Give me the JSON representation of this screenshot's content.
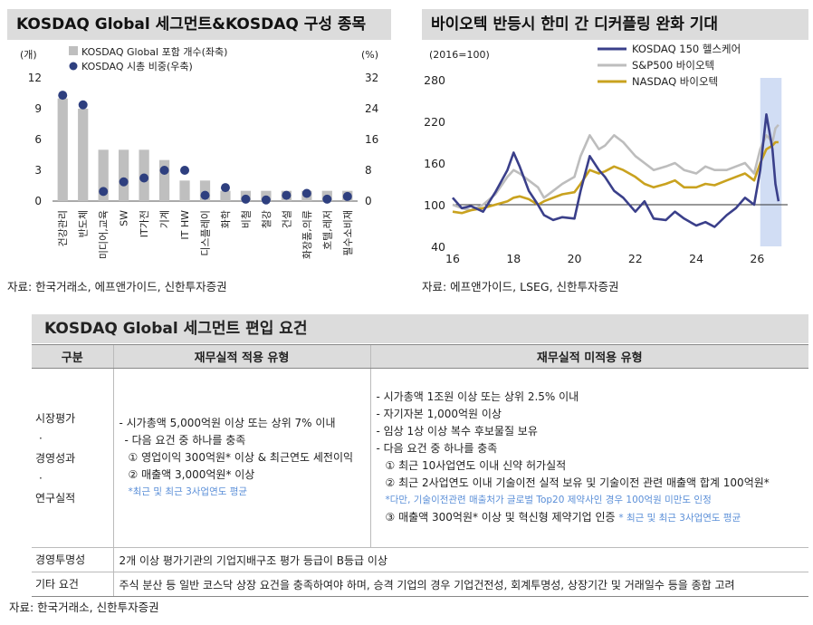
{
  "left_panel": {
    "title": "KOSDAQ Global 세그먼트&KOSDAQ 구성 종목",
    "source": "자료: 한국거래소, 에프앤가이드, 신한투자증권"
  },
  "right_panel": {
    "title": "바이오텍 반등시 한미 간 디커플링 완화 기대",
    "source": "자료: 에프앤가이드, LSEG, 신한투자증권"
  },
  "chart_data": [
    {
      "type": "bar",
      "left_unit": "(개)",
      "right_unit": "(%)",
      "left_ticks": [
        "0",
        "3",
        "6",
        "9",
        "12"
      ],
      "right_ticks": [
        "0",
        "8",
        "16",
        "24",
        "32"
      ],
      "ylim_left": [
        0,
        12
      ],
      "ylim_right": [
        0,
        32
      ],
      "categories": [
        "건강관리",
        "반도체",
        "미디어,교육",
        "SW",
        "IT가전",
        "기계",
        "IT HW",
        "디스플레이",
        "화학",
        "비철",
        "철강",
        "건설",
        "화장품,의류",
        "호텔,레저",
        "필수소비재"
      ],
      "series": [
        {
          "name": "KOSDAQ Global 포함 개수(좌축)",
          "kind": "bar",
          "axis": "left",
          "color": "#bfbfbf",
          "values": [
            10,
            9,
            5,
            5,
            5,
            4,
            2,
            2,
            1,
            1,
            1,
            1,
            1,
            1,
            1
          ]
        },
        {
          "name": "KOSDAQ 시총 비중(우축)",
          "kind": "dot",
          "axis": "right",
          "color": "#2e3f7f",
          "values": [
            27.5,
            25,
            2.5,
            5,
            6,
            8,
            8,
            1.5,
            3.5,
            0.5,
            0.3,
            1.5,
            2,
            0.5,
            1.2
          ]
        }
      ]
    },
    {
      "type": "line",
      "unit_label": "(2016=100)",
      "y_ticks": [
        "40",
        "100",
        "160",
        "220",
        "280"
      ],
      "x_ticks": [
        "16",
        "18",
        "20",
        "22",
        "24",
        "26"
      ],
      "ylim": [
        40,
        280
      ],
      "xlim": [
        16,
        27
      ],
      "shaded_region": [
        26.1,
        26.8
      ],
      "series": [
        {
          "name": "KOSDAQ 150 헬스케어",
          "color": "#3a3f8a",
          "x": [
            16,
            16.3,
            16.6,
            17,
            17.4,
            17.8,
            18,
            18.2,
            18.5,
            18.8,
            19,
            19.3,
            19.6,
            20,
            20.2,
            20.5,
            20.8,
            21,
            21.3,
            21.6,
            22,
            22.3,
            22.6,
            23,
            23.3,
            23.6,
            24,
            24.3,
            24.6,
            25,
            25.3,
            25.6,
            25.9,
            26.1,
            26.3,
            26.5,
            26.6,
            26.7
          ],
          "y": [
            110,
            95,
            98,
            90,
            118,
            150,
            175,
            155,
            120,
            100,
            85,
            78,
            82,
            80,
            120,
            170,
            150,
            140,
            120,
            110,
            90,
            105,
            80,
            78,
            90,
            80,
            70,
            75,
            68,
            85,
            95,
            110,
            100,
            150,
            230,
            180,
            130,
            105
          ]
        },
        {
          "name": "S&P500 바이오텍",
          "color": "#bdbdbd",
          "x": [
            16,
            16.3,
            16.6,
            17,
            17.4,
            17.8,
            18,
            18.2,
            18.5,
            18.8,
            19,
            19.3,
            19.6,
            20,
            20.2,
            20.5,
            20.8,
            21,
            21.3,
            21.6,
            22,
            22.3,
            22.6,
            23,
            23.3,
            23.6,
            24,
            24.3,
            24.6,
            25,
            25.3,
            25.6,
            25.9,
            26.1,
            26.3,
            26.5,
            26.6,
            26.7
          ],
          "y": [
            100,
            95,
            92,
            100,
            115,
            140,
            150,
            145,
            135,
            125,
            110,
            120,
            130,
            140,
            170,
            200,
            180,
            185,
            200,
            190,
            170,
            160,
            150,
            155,
            160,
            150,
            145,
            155,
            150,
            150,
            155,
            160,
            145,
            180,
            200,
            190,
            210,
            215
          ]
        },
        {
          "name": "NASDAQ 바이오텍",
          "color": "#c9a21f",
          "x": [
            16,
            16.3,
            16.6,
            17,
            17.4,
            17.8,
            18,
            18.2,
            18.5,
            18.8,
            19,
            19.3,
            19.6,
            20,
            20.2,
            20.5,
            20.8,
            21,
            21.3,
            21.6,
            22,
            22.3,
            22.6,
            23,
            23.3,
            23.6,
            24,
            24.3,
            24.6,
            25,
            25.3,
            25.6,
            25.9,
            26.1,
            26.3,
            26.5,
            26.6,
            26.7
          ],
          "y": [
            90,
            88,
            92,
            95,
            100,
            105,
            110,
            112,
            108,
            100,
            105,
            110,
            115,
            118,
            130,
            150,
            145,
            148,
            155,
            150,
            140,
            130,
            125,
            130,
            135,
            125,
            125,
            130,
            128,
            135,
            140,
            145,
            135,
            160,
            180,
            185,
            190,
            190
          ]
        }
      ]
    }
  ],
  "table": {
    "title": "KOSDAQ Global 세그먼트 편입 요건",
    "headers": [
      "구분",
      "재무실적 적용 유형",
      "재무실적 미적용 유형"
    ],
    "row1": {
      "label_lines": [
        "시장평가",
        "·",
        "경영성과",
        "·",
        "연구실적"
      ],
      "applied": [
        "- 시가총액 5,000억원 이상 또는 상위 7% 이내",
        "- 다음 요건 중 하나를 충족",
        "① 영업이익 300억원* 이상 & 최근연도 세전이익",
        "② 매출액 3,000억원* 이상"
      ],
      "applied_note": "*최근 및 최근 3사업연도 평균",
      "not_applied": [
        "- 시가총액 1조원 이상 또는 상위 2.5% 이내",
        "- 자기자본 1,000억원 이상",
        "- 임상 1상 이상 복수 후보물질 보유",
        "- 다음 요건 중 하나를 충족",
        "① 최근 10사업연도 이내 신약 허가실적",
        "② 최근 2사업연도 이내 기술이전 실적 보유 및 기술이전 관련 매출액 합계 100억원*"
      ],
      "not_applied_note": "*다만, 기술이전관련 매출처가 글로벌 Top20 제약사인 경우 100억원 미만도 인정",
      "not_applied_last": "③ 매출액 300억원* 이상 및 혁신형 제약기업 인증",
      "not_applied_last_note": "* 최근 및 최근 3사업연도 평균"
    },
    "row2": {
      "label": "경영투명성",
      "text": "2개 이상 평가기관의 기업지배구조 평가 등급이 B등급 이상"
    },
    "row3": {
      "label": "기타 요건",
      "text": "주식 분산 등 일반 코스닥 상장 요건을 충족하여야 하며, 승격 기업의 경우 기업건전성, 회계투명성, 상장기간 및 거래일수 등을 종합 고려"
    },
    "source": "자료: 한국거래소, 신한투자증권"
  }
}
